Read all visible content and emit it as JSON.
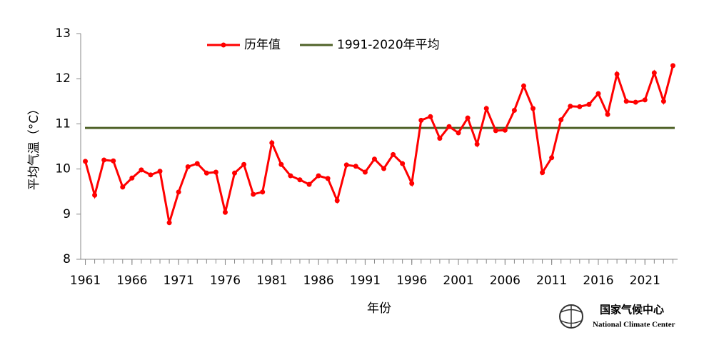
{
  "chart_data": {
    "type": "line",
    "ylabel": "平均气温（°C）",
    "xlabel": "年份",
    "x": [
      1961,
      1962,
      1963,
      1964,
      1965,
      1966,
      1967,
      1968,
      1969,
      1970,
      1971,
      1972,
      1973,
      1974,
      1975,
      1976,
      1977,
      1978,
      1979,
      1980,
      1981,
      1982,
      1983,
      1984,
      1985,
      1986,
      1987,
      1988,
      1989,
      1990,
      1991,
      1992,
      1993,
      1994,
      1995,
      1996,
      1997,
      1998,
      1999,
      2000,
      2001,
      2002,
      2003,
      2004,
      2005,
      2006,
      2007,
      2008,
      2009,
      2010,
      2011,
      2012,
      2013,
      2014,
      2015,
      2016,
      2017,
      2018,
      2019,
      2020,
      2021,
      2022,
      2023,
      2024
    ],
    "series": [
      {
        "name": "历年值",
        "color": "#ff0000",
        "values": [
          10.17,
          9.42,
          10.2,
          10.18,
          9.6,
          9.8,
          9.98,
          9.87,
          9.95,
          8.81,
          9.49,
          10.05,
          10.12,
          9.91,
          9.93,
          9.04,
          9.91,
          10.1,
          9.44,
          9.49,
          10.58,
          10.1,
          9.85,
          9.76,
          9.66,
          9.85,
          9.79,
          9.3,
          10.09,
          10.06,
          9.93,
          10.22,
          10.01,
          10.32,
          10.12,
          9.68,
          11.08,
          11.16,
          10.68,
          10.94,
          10.8,
          11.13,
          10.55,
          11.34,
          10.85,
          10.86,
          11.3,
          11.84,
          11.34,
          9.92,
          10.25,
          11.09,
          11.39,
          11.38,
          11.43,
          11.67,
          11.21,
          12.1,
          11.5,
          11.48,
          11.53,
          12.13,
          11.5,
          12.29
        ]
      }
    ],
    "reference": {
      "name": "1991-2020年平均",
      "color": "#4f6228",
      "value": 10.91
    },
    "xlim": [
      1960.5,
      2024.5
    ],
    "xticks": [
      1961,
      1966,
      1971,
      1976,
      1981,
      1986,
      1991,
      1996,
      2001,
      2006,
      2011,
      2016,
      2021
    ],
    "ylim": [
      8,
      13
    ],
    "yticks": [
      8,
      9,
      10,
      11,
      12,
      13
    ]
  },
  "logo": {
    "name_cn": "国家气候中心",
    "name_en": "National Climate Center"
  }
}
